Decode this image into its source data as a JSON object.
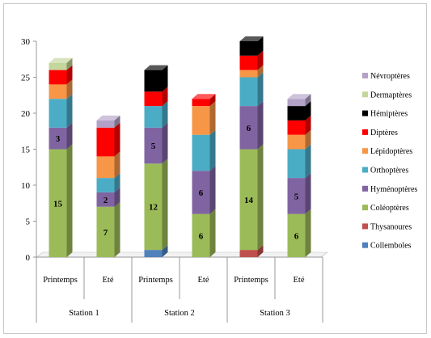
{
  "chart_data": {
    "type": "bar",
    "stacked": true,
    "three_d": true,
    "ylim": [
      0,
      30
    ],
    "yticks": [
      "0",
      "5",
      "10",
      "15",
      "20",
      "25",
      "30"
    ],
    "grid": false,
    "legend_position": "right",
    "groups": [
      "Station 1",
      "Station 2",
      "Station 3"
    ],
    "categories": [
      "Printemps",
      "Eté",
      "Printemps",
      "Eté",
      "Printemps",
      "Eté"
    ],
    "series": [
      {
        "name": "Collemboles",
        "color": "#4f81bd",
        "values": [
          0,
          0,
          1,
          0,
          0,
          0
        ]
      },
      {
        "name": "Thysanoures",
        "color": "#c0504d",
        "values": [
          0,
          0,
          0,
          0,
          1,
          0
        ]
      },
      {
        "name": "Coléoptères",
        "color": "#9bbb59",
        "values": [
          15,
          7,
          12,
          6,
          14,
          6
        ]
      },
      {
        "name": "Hyménoptères",
        "color": "#8064a2",
        "values": [
          3,
          2,
          5,
          6,
          6,
          5
        ]
      },
      {
        "name": "Orthoptères",
        "color": "#4bacc6",
        "values": [
          4,
          2,
          3,
          5,
          4,
          4
        ]
      },
      {
        "name": "Lépidoptères",
        "color": "#f79646",
        "values": [
          2,
          3,
          0,
          4,
          1,
          2
        ]
      },
      {
        "name": "Diptères",
        "color": "#ff0000",
        "values": [
          2,
          4,
          2,
          1,
          2,
          2
        ]
      },
      {
        "name": "Hémiptères",
        "color": "#000000",
        "values": [
          0,
          0,
          3,
          0,
          2,
          2
        ]
      },
      {
        "name": "Dermaptères",
        "color": "#c3d69b",
        "values": [
          1,
          0,
          0,
          0,
          0,
          0
        ]
      },
      {
        "name": "Névroptères",
        "color": "#b3a2c7",
        "values": [
          0,
          1,
          0,
          0,
          0,
          1
        ]
      }
    ],
    "data_labels": [
      {
        "bar": 0,
        "series": "Coléoptères",
        "text": "15"
      },
      {
        "bar": 0,
        "series": "Hyménoptères",
        "text": "3"
      },
      {
        "bar": 1,
        "series": "Coléoptères",
        "text": "7"
      },
      {
        "bar": 1,
        "series": "Hyménoptères",
        "text": "2"
      },
      {
        "bar": 2,
        "series": "Coléoptères",
        "text": "12"
      },
      {
        "bar": 2,
        "series": "Hyménoptères",
        "text": "5"
      },
      {
        "bar": 3,
        "series": "Coléoptères",
        "text": "6"
      },
      {
        "bar": 3,
        "series": "Hyménoptères",
        "text": "6"
      },
      {
        "bar": 4,
        "series": "Coléoptères",
        "text": "14"
      },
      {
        "bar": 4,
        "series": "Hyménoptères",
        "text": "6"
      },
      {
        "bar": 5,
        "series": "Coléoptères",
        "text": "6"
      },
      {
        "bar": 5,
        "series": "Hyménoptères",
        "text": "5"
      }
    ]
  }
}
